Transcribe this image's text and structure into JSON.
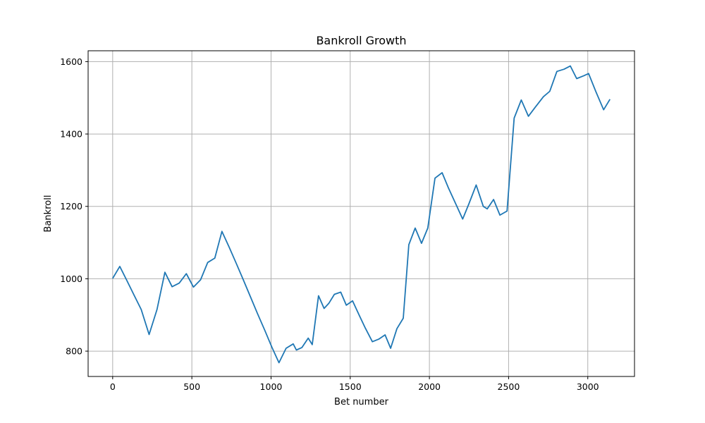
{
  "chart_data": {
    "type": "line",
    "title": "Bankroll Growth",
    "xlabel": "Bet number",
    "ylabel": "Bankroll",
    "xlim": [
      -155,
      3295
    ],
    "ylim": [
      730,
      1630
    ],
    "xticks": [
      0,
      500,
      1000,
      1500,
      2000,
      2500,
      3000
    ],
    "yticks": [
      800,
      1000,
      1200,
      1400,
      1600
    ],
    "grid": true,
    "line_color": "#1f77b4",
    "series": [
      {
        "x": [
          0,
          45,
          90,
          135,
          180,
          230,
          280,
          330,
          375,
          420,
          465,
          510,
          555,
          600,
          645,
          690,
          735,
          780,
          825,
          870,
          915,
          960,
          1005,
          1050,
          1095,
          1140,
          1160,
          1195,
          1235,
          1260,
          1300,
          1335,
          1365,
          1400,
          1440,
          1475,
          1515,
          1555,
          1595,
          1640,
          1680,
          1720,
          1755,
          1795,
          1835,
          1870,
          1910,
          1950,
          1990,
          2035,
          2080,
          2120,
          2165,
          2210,
          2250,
          2295,
          2340,
          2365,
          2405,
          2445,
          2490,
          2535,
          2580,
          2625,
          2670,
          2720,
          2760,
          2805,
          2850,
          2890,
          2930,
          2975,
          3005,
          3050,
          3100,
          3140
        ],
        "y": [
          1001,
          1034,
          995,
          955,
          915,
          846,
          915,
          1018,
          978,
          988,
          1014,
          977,
          997,
          1045,
          1057,
          1131,
          1088,
          1043,
          997,
          950,
          903,
          858,
          811,
          768,
          808,
          820,
          803,
          810,
          836,
          818,
          953,
          918,
          932,
          957,
          963,
          927,
          939,
          901,
          864,
          826,
          833,
          845,
          808,
          862,
          891,
          1094,
          1140,
          1098,
          1140,
          1278,
          1293,
          1251,
          1208,
          1165,
          1208,
          1259,
          1200,
          1193,
          1219,
          1176,
          1187,
          1444,
          1494,
          1449,
          1475,
          1503,
          1518,
          1573,
          1579,
          1588,
          1553,
          1561,
          1567,
          1518,
          1467,
          1496
        ]
      }
    ]
  }
}
